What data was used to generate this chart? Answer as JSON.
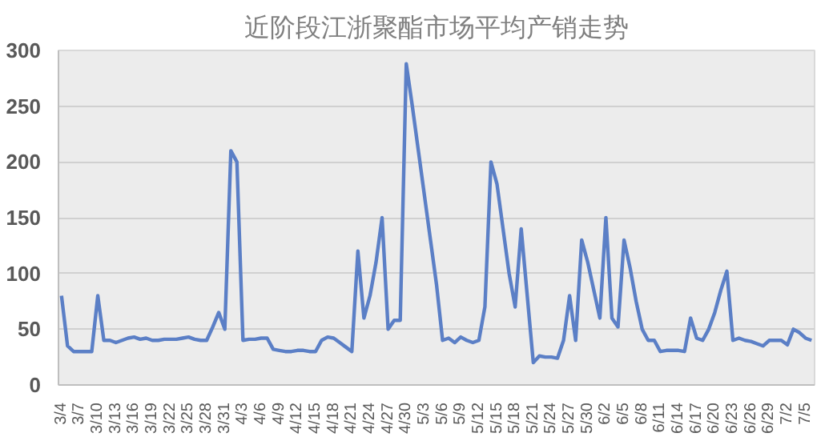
{
  "chart_data": {
    "type": "line",
    "title": "近阶段江浙聚酯市场平均产销走势",
    "categories": [
      "3/4",
      null,
      null,
      "3/7",
      null,
      null,
      "3/10",
      null,
      null,
      "3/13",
      null,
      null,
      "3/16",
      null,
      null,
      "3/19",
      null,
      null,
      "3/22",
      null,
      null,
      "3/25",
      null,
      null,
      "3/28",
      null,
      null,
      "3/31",
      null,
      null,
      "4/3",
      null,
      null,
      "4/6",
      null,
      null,
      "4/9",
      null,
      null,
      "4/12",
      null,
      null,
      "4/15",
      null,
      null,
      "4/18",
      null,
      null,
      "4/21",
      null,
      null,
      "4/24",
      null,
      null,
      "4/27",
      null,
      null,
      "4/30",
      null,
      null,
      "5/3",
      null,
      null,
      "5/6",
      null,
      null,
      "5/9",
      null,
      null,
      "5/12",
      null,
      null,
      "5/15",
      null,
      null,
      "5/18",
      null,
      null,
      "5/21",
      null,
      null,
      "5/24",
      null,
      null,
      "5/27",
      null,
      null,
      "5/30",
      null,
      null,
      "6/2",
      null,
      null,
      "6/5",
      null,
      null,
      "6/8",
      null,
      null,
      "6/11",
      null,
      null,
      "6/14",
      null,
      null,
      "6/17",
      null,
      null,
      "6/20",
      null,
      null,
      "6/23",
      null,
      null,
      "6/26",
      null,
      null,
      "6/29",
      null,
      null,
      "7/2",
      null,
      null,
      "7/5",
      null
    ],
    "series": [
      {
        "color": "#5b7fc6",
        "values": [
          80,
          35,
          30,
          30,
          30,
          30,
          80,
          40,
          40,
          38,
          40,
          42,
          43,
          41,
          42,
          40,
          40,
          41,
          41,
          41,
          42,
          43,
          41,
          40,
          40,
          52,
          65,
          50,
          210,
          200,
          40,
          41,
          41,
          42,
          42,
          32,
          31,
          30,
          30,
          31,
          31,
          30,
          30,
          40,
          43,
          42,
          38,
          34,
          30,
          120,
          60,
          80,
          110,
          150,
          50,
          58,
          58,
          288,
          250,
          210,
          170,
          130,
          90,
          40,
          42,
          38,
          43,
          40,
          38,
          40,
          70,
          200,
          180,
          140,
          100,
          70,
          140,
          80,
          20,
          26,
          25,
          25,
          24,
          40,
          80,
          40,
          130,
          110,
          85,
          60,
          150,
          60,
          52,
          130,
          105,
          75,
          50,
          40,
          40,
          30,
          31,
          31,
          31,
          30,
          60,
          42,
          40,
          50,
          65,
          85,
          102,
          40,
          42,
          40,
          39,
          37,
          35,
          40,
          40,
          40,
          36,
          50,
          47,
          42,
          40
        ]
      }
    ],
    "ylim": [
      0,
      300
    ],
    "yticks": [
      0,
      50,
      100,
      150,
      200,
      250,
      300
    ],
    "grid": "y",
    "line_style": "solid"
  }
}
